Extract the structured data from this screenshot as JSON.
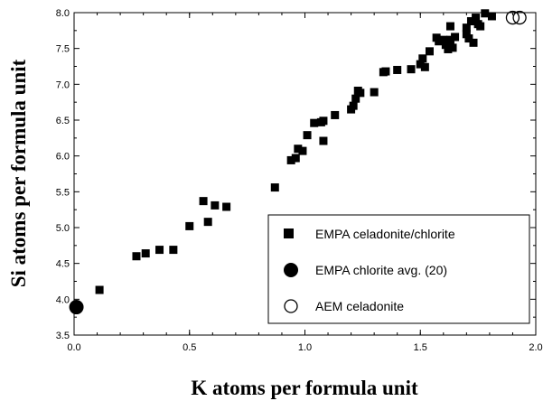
{
  "chart_data": {
    "type": "scatter",
    "xlabel": "K atoms per formula unit",
    "ylabel": "Si atoms per formula unit",
    "xlim": [
      0.0,
      2.0
    ],
    "ylim": [
      3.5,
      8.0
    ],
    "xticks": [
      "0.0",
      "0.5",
      "1.0",
      "1.5",
      "2.0"
    ],
    "yticks": [
      "3.5",
      "4.0",
      "4.5",
      "5.0",
      "5.5",
      "6.0",
      "6.5",
      "7.0",
      "7.5",
      "8.0"
    ],
    "grid": false,
    "legend_position": "lower-right",
    "series": [
      {
        "name": "EMPA celadonite/chlorite",
        "marker": "filled-square",
        "points": [
          [
            0.11,
            4.13
          ],
          [
            0.27,
            4.6
          ],
          [
            0.31,
            4.64
          ],
          [
            0.37,
            4.69
          ],
          [
            0.43,
            4.69
          ],
          [
            0.5,
            5.02
          ],
          [
            0.56,
            5.37
          ],
          [
            0.58,
            5.08
          ],
          [
            0.61,
            5.31
          ],
          [
            0.66,
            5.29
          ],
          [
            0.87,
            5.56
          ],
          [
            0.94,
            5.94
          ],
          [
            0.96,
            5.97
          ],
          [
            0.97,
            6.1
          ],
          [
            0.99,
            6.07
          ],
          [
            1.01,
            6.29
          ],
          [
            1.04,
            6.46
          ],
          [
            1.07,
            6.47
          ],
          [
            1.08,
            6.49
          ],
          [
            1.08,
            6.21
          ],
          [
            1.13,
            6.57
          ],
          [
            1.2,
            6.65
          ],
          [
            1.21,
            6.7
          ],
          [
            1.22,
            6.8
          ],
          [
            1.23,
            6.91
          ],
          [
            1.24,
            6.88
          ],
          [
            1.3,
            6.89
          ],
          [
            1.34,
            7.17
          ],
          [
            1.35,
            7.18
          ],
          [
            1.4,
            7.2
          ],
          [
            1.46,
            7.21
          ],
          [
            1.5,
            7.28
          ],
          [
            1.51,
            7.36
          ],
          [
            1.52,
            7.24
          ],
          [
            1.54,
            7.46
          ],
          [
            1.57,
            7.65
          ],
          [
            1.58,
            7.6
          ],
          [
            1.6,
            7.62
          ],
          [
            1.61,
            7.55
          ],
          [
            1.62,
            7.49
          ],
          [
            1.63,
            7.81
          ],
          [
            1.63,
            7.62
          ],
          [
            1.64,
            7.51
          ],
          [
            1.65,
            7.66
          ],
          [
            1.7,
            7.79
          ],
          [
            1.7,
            7.7
          ],
          [
            1.71,
            7.64
          ],
          [
            1.72,
            7.88
          ],
          [
            1.73,
            7.58
          ],
          [
            1.74,
            7.93
          ],
          [
            1.75,
            7.84
          ],
          [
            1.76,
            7.81
          ],
          [
            1.78,
            7.99
          ],
          [
            1.81,
            7.95
          ]
        ]
      },
      {
        "name": "EMPA chlorite avg. (20)",
        "marker": "filled-circle",
        "points": [
          [
            0.01,
            3.89
          ]
        ]
      },
      {
        "name": "AEM celadonite",
        "marker": "open-circle",
        "points": [
          [
            1.9,
            7.93
          ],
          [
            1.93,
            7.93
          ]
        ]
      }
    ]
  }
}
